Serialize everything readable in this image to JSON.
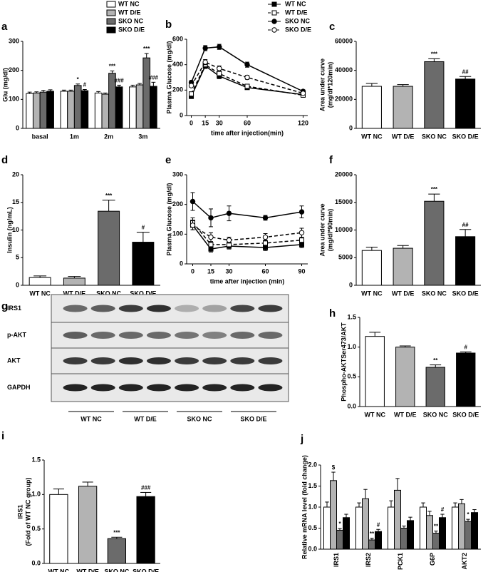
{
  "chart_data": [
    {
      "type": "grouped_bar",
      "label": "a",
      "ylabel": [
        "Glu (mg/dl)"
      ],
      "categories": [
        "basal",
        "1m",
        "2m",
        "3m"
      ],
      "ylim": [
        0,
        300
      ],
      "yticks": [
        0,
        100,
        200,
        300
      ],
      "legend": "top-right",
      "series": [
        {
          "name": "WT NC",
          "color": "#ffffff",
          "values": [
            120,
            128,
            122,
            143
          ],
          "errors": [
            5,
            4,
            5,
            6
          ],
          "annotations": [
            null,
            null,
            null,
            null
          ]
        },
        {
          "name": "WT D/E",
          "color": "#b3b3b3",
          "values": [
            122,
            128,
            118,
            150
          ],
          "errors": [
            4,
            4,
            4,
            5
          ],
          "annotations": [
            null,
            null,
            null,
            null
          ]
        },
        {
          "name": "SKO NC",
          "color": "#6b6b6b",
          "values": [
            125,
            148,
            190,
            243
          ],
          "errors": [
            6,
            5,
            8,
            15
          ],
          "annotations": [
            null,
            "*",
            "***",
            "***"
          ]
        },
        {
          "name": "SKO D/E",
          "color": "#000000",
          "values": [
            128,
            130,
            143,
            145
          ],
          "errors": [
            5,
            4,
            6,
            14
          ],
          "annotations": [
            null,
            "#",
            "###",
            "###"
          ]
        }
      ]
    },
    {
      "type": "line",
      "label": "b",
      "ylabel": [
        "Plasma Glucose (mg/dl)"
      ],
      "xlabel": "time after injection(min)",
      "x": [
        0,
        15,
        30,
        60,
        120
      ],
      "xlim": [
        -5,
        125
      ],
      "xticks": [
        0,
        15,
        30,
        60,
        120
      ],
      "ylim": [
        0,
        600
      ],
      "yticks": [
        0,
        200,
        400,
        600
      ],
      "legend": "top-right",
      "series": [
        {
          "name": "WT NC",
          "color": "#000000",
          "marker": "square",
          "filled": true,
          "dashed": false,
          "values": [
            150,
            390,
            310,
            220,
            165
          ],
          "errors": [
            10,
            20,
            20,
            15,
            10
          ]
        },
        {
          "name": "WT D/E",
          "color": "#000000",
          "marker": "square",
          "filled": false,
          "dashed": true,
          "values": [
            170,
            400,
            330,
            230,
            160
          ],
          "errors": [
            10,
            20,
            20,
            15,
            10
          ]
        },
        {
          "name": "SKO NC",
          "color": "#000000",
          "marker": "circle",
          "filled": true,
          "dashed": false,
          "values": [
            260,
            530,
            540,
            400,
            190
          ],
          "errors": [
            15,
            20,
            20,
            20,
            12
          ]
        },
        {
          "name": "SKO D/E",
          "color": "#000000",
          "marker": "circle",
          "filled": false,
          "dashed": true,
          "values": [
            235,
            420,
            370,
            300,
            175
          ],
          "errors": [
            12,
            20,
            20,
            15,
            10
          ]
        }
      ]
    },
    {
      "type": "bar",
      "label": "c",
      "ylabel": [
        "Area under curve",
        "(mg/dl*120min)"
      ],
      "categories": [
        "WT NC",
        "WT D/E",
        "SKO NC",
        "SKO D/E"
      ],
      "colors": [
        "#ffffff",
        "#b3b3b3",
        "#6b6b6b",
        "#000000"
      ],
      "ylim": [
        0,
        60000
      ],
      "yticks": [
        0,
        20000,
        40000,
        60000
      ],
      "values": [
        29000,
        29000,
        46000,
        34000
      ],
      "errors": [
        2000,
        1200,
        2000,
        1800
      ],
      "annotations": [
        null,
        null,
        "***",
        "##"
      ]
    },
    {
      "type": "bar",
      "label": "d",
      "ylabel": [
        "Insulin (ng/mL)"
      ],
      "categories": [
        "WT NC",
        "WT D/E",
        "SKO NC",
        "SKO D/E"
      ],
      "colors": [
        "#ffffff",
        "#b3b3b3",
        "#6b6b6b",
        "#000000"
      ],
      "ylim": [
        0,
        20
      ],
      "yticks": [
        0,
        5,
        10,
        15,
        20
      ],
      "values": [
        1.4,
        1.3,
        13.4,
        7.8
      ],
      "errors": [
        0.3,
        0.3,
        2,
        1.8
      ],
      "annotations": [
        null,
        null,
        "***",
        "#"
      ]
    },
    {
      "type": "line",
      "label": "e",
      "ylabel": [
        "Plasma Glucose (mg/dl)"
      ],
      "xlabel": "time after injection (min)",
      "x": [
        0,
        15,
        30,
        60,
        90
      ],
      "xlim": [
        -5,
        95
      ],
      "xticks": [
        0,
        15,
        30,
        60,
        90
      ],
      "ylim": [
        0,
        300
      ],
      "yticks": [
        0,
        100,
        200,
        300
      ],
      "series": [
        {
          "color": "#000000",
          "marker": "square",
          "filled": true,
          "dashed": false,
          "values": [
            130,
            50,
            60,
            55,
            65
          ],
          "errors": [
            15,
            10,
            10,
            10,
            10
          ]
        },
        {
          "color": "#000000",
          "marker": "square",
          "filled": false,
          "dashed": true,
          "values": [
            140,
            65,
            65,
            70,
            80
          ],
          "errors": [
            15,
            10,
            10,
            10,
            10
          ]
        },
        {
          "color": "#000000",
          "marker": "circle",
          "filled": true,
          "dashed": false,
          "values": [
            210,
            155,
            170,
            155,
            175
          ],
          "errors": [
            30,
            30,
            25,
            8,
            20
          ]
        },
        {
          "color": "#000000",
          "marker": "circle",
          "filled": false,
          "dashed": true,
          "values": [
            130,
            90,
            80,
            90,
            105
          ],
          "errors": [
            15,
            15,
            10,
            12,
            15
          ]
        }
      ]
    },
    {
      "type": "bar",
      "label": "f",
      "ylabel": [
        "Area under curve",
        "(mg/dl*90min)"
      ],
      "categories": [
        "WT NC",
        "WT D/E",
        "SKO NC",
        "SKO D/E"
      ],
      "colors": [
        "#ffffff",
        "#b3b3b3",
        "#6b6b6b",
        "#000000"
      ],
      "ylim": [
        0,
        20000
      ],
      "yticks": [
        0,
        5000,
        10000,
        15000,
        20000
      ],
      "values": [
        6300,
        6700,
        15200,
        8800
      ],
      "errors": [
        600,
        500,
        1300,
        1300
      ],
      "annotations": [
        null,
        null,
        "***",
        "##"
      ]
    },
    {
      "type": "bar",
      "label": "h",
      "ylabel": [
        "Phospho-AKTSer473/AKT"
      ],
      "categories": [
        "WT NC",
        "WT D/E",
        "SKO NC",
        "SKO D/E"
      ],
      "colors": [
        "#ffffff",
        "#b3b3b3",
        "#6b6b6b",
        "#000000"
      ],
      "ylim": [
        0,
        1.5
      ],
      "yticks": [
        {
          "value": 0,
          "label": "0.0"
        },
        {
          "value": 0.5,
          "label": "0.5"
        },
        {
          "value": 1,
          "label": "1.0"
        },
        {
          "value": 1.5,
          "label": "1.5"
        }
      ],
      "values": [
        1.18,
        1.0,
        0.66,
        0.9
      ],
      "errors": [
        0.07,
        0.02,
        0.04,
        0.02
      ],
      "annotations": [
        null,
        null,
        "**",
        "#"
      ]
    },
    {
      "type": "bar",
      "label": "i",
      "ylabel": [
        "IRS1",
        "(Fold of WT NC group)"
      ],
      "categories": [
        "WT NC",
        "WT D/E",
        "SKO NC",
        "SKO D/E"
      ],
      "colors": [
        "#ffffff",
        "#b3b3b3",
        "#6b6b6b",
        "#000000"
      ],
      "ylim": [
        0,
        1.5
      ],
      "yticks": [
        {
          "value": 0,
          "label": "0.0"
        },
        {
          "value": 0.5,
          "label": "0.5"
        },
        {
          "value": 1,
          "label": "1.0"
        },
        {
          "value": 1.5,
          "label": "1.5"
        }
      ],
      "values": [
        1.0,
        1.12,
        0.36,
        0.97
      ],
      "errors": [
        0.08,
        0.06,
        0.02,
        0.06
      ],
      "annotations": [
        null,
        null,
        "***",
        "###"
      ]
    },
    {
      "type": "grouped_bar",
      "label": "j",
      "ylabel": [
        "Relative mRNA level (fold change)"
      ],
      "categories": [
        "IRS1",
        "IRS2",
        "PCK1",
        "G6P",
        "AKT2"
      ],
      "ylim": [
        0,
        2
      ],
      "yticks": [
        {
          "value": 0,
          "label": "0.0"
        },
        {
          "value": 0.5,
          "label": "0.5"
        },
        {
          "value": 1,
          "label": "1.0"
        },
        {
          "value": 1.5,
          "label": "1.5"
        },
        {
          "value": 2,
          "label": "2.0"
        }
      ],
      "series": [
        {
          "color": "#ffffff",
          "values": [
            1.0,
            1.0,
            1.0,
            1.0,
            1.0
          ],
          "errors": [
            0.12,
            0.1,
            0.15,
            0.1,
            0.1
          ],
          "annotations": [
            null,
            null,
            null,
            null,
            null
          ]
        },
        {
          "color": "#b3b3b3",
          "values": [
            1.63,
            1.2,
            1.4,
            0.8,
            1.08
          ],
          "errors": [
            0.2,
            0.22,
            0.28,
            0.1,
            0.1
          ],
          "annotations": [
            "$",
            null,
            null,
            null,
            null
          ]
        },
        {
          "color": "#6b6b6b",
          "values": [
            0.45,
            0.22,
            0.5,
            0.38,
            0.66
          ],
          "errors": [
            0.04,
            0.04,
            0.05,
            0.05,
            0.05
          ],
          "annotations": [
            "*",
            "**",
            null,
            "**",
            "*"
          ]
        },
        {
          "color": "#000000",
          "values": [
            0.75,
            0.42,
            0.68,
            0.75,
            0.87
          ],
          "errors": [
            0.08,
            0.05,
            0.08,
            0.08,
            0.07
          ],
          "annotations": [
            null,
            "#",
            null,
            "#",
            null
          ]
        }
      ]
    }
  ],
  "blot": {
    "label": "g",
    "rows": [
      "IRS1",
      "p-AKT",
      "AKT",
      "GAPDH"
    ],
    "groups": [
      "WT NC",
      "WT D/E",
      "SKO NC",
      "SKO D/E"
    ]
  }
}
